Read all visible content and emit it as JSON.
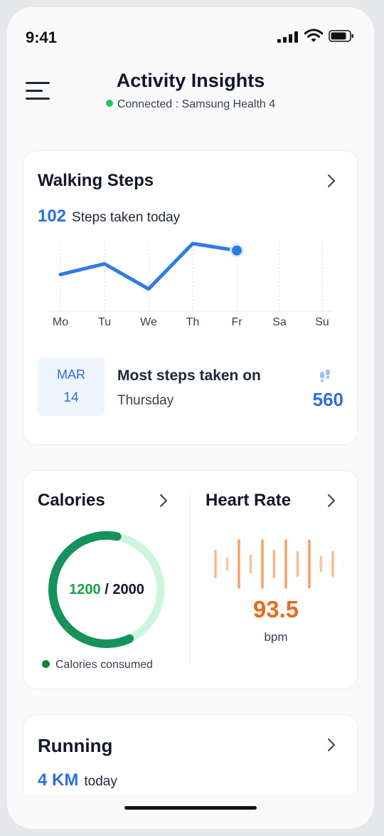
{
  "status_bar": {
    "time": "9:41"
  },
  "header": {
    "title": "Activity Insights",
    "connection": "Connected : Samsung Health 4"
  },
  "walking": {
    "title": "Walking Steps",
    "steps_value": "102",
    "steps_label": "Steps taken today",
    "days": [
      "Mo",
      "Tu",
      "We",
      "Th",
      "Fr",
      "Sa",
      "Su"
    ],
    "chart_data": {
      "type": "line",
      "categories": [
        "Mo",
        "Tu",
        "We",
        "Th",
        "Fr",
        "Sa",
        "Su"
      ],
      "relative_level": [
        0.42,
        0.62,
        0.15,
        1.0,
        0.87,
        null,
        null
      ],
      "highlight_day": "Fr"
    },
    "best": {
      "month": "MAR",
      "day": "14",
      "title": "Most steps taken on",
      "weekday": "Thursday",
      "value": "560"
    }
  },
  "calories": {
    "title": "Calories",
    "consumed": "1200",
    "separator": " / ",
    "goal": "2000",
    "progress_fraction": 0.6,
    "legend": "Calories consumed",
    "colors": {
      "consumed": "#15935a",
      "remaining": "#ccf5dd"
    }
  },
  "heart": {
    "title": "Heart Rate",
    "value": "93.5",
    "unit": "bpm",
    "wave_levels": [
      0.55,
      0.25,
      1.0,
      0.35,
      1.0,
      0.55,
      1.0,
      0.5,
      1.0,
      0.3,
      0.5,
      0.2,
      0.7
    ],
    "colors": {
      "wave": "#f5a06a",
      "value": "#ea6a1f"
    }
  },
  "running": {
    "title": "Running",
    "value": "4 KM",
    "label": "today"
  }
}
